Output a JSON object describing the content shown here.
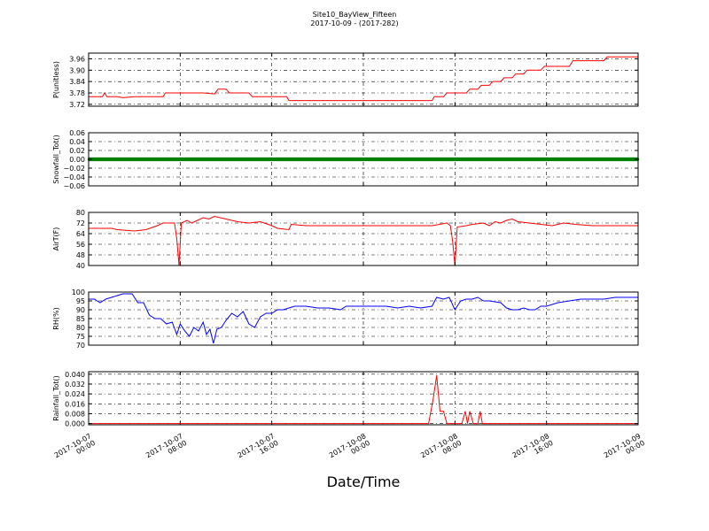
{
  "figure": {
    "title": "Site10_BayView_Fifteen",
    "subtitle": "2017-10-09 - (2017-282)",
    "xlabel": "Date/Time"
  },
  "chart_data": [
    {
      "type": "line",
      "ylabel": "P(unitless)",
      "ylim": [
        3.71,
        3.99
      ],
      "yticks": [
        "3.72",
        "3.78",
        "3.84",
        "3.90",
        "3.96"
      ],
      "yticks_values": [
        3.72,
        3.78,
        3.84,
        3.9,
        3.96
      ],
      "color": "#ff0000",
      "grid": true,
      "xlim_hours": [
        0,
        48
      ],
      "points": [
        [
          0,
          3.76
        ],
        [
          1.2,
          3.76
        ],
        [
          1.4,
          3.78
        ],
        [
          1.6,
          3.76
        ],
        [
          2.5,
          3.76
        ],
        [
          3,
          3.755
        ],
        [
          4,
          3.76
        ],
        [
          6.5,
          3.76
        ],
        [
          6.7,
          3.78
        ],
        [
          8,
          3.78
        ],
        [
          10,
          3.78
        ],
        [
          11,
          3.775
        ],
        [
          11.3,
          3.8
        ],
        [
          12,
          3.8
        ],
        [
          12.3,
          3.78
        ],
        [
          14,
          3.78
        ],
        [
          14.3,
          3.76
        ],
        [
          16.5,
          3.76
        ],
        [
          17.3,
          3.76
        ],
        [
          17.5,
          3.74
        ],
        [
          22,
          3.74
        ],
        [
          26,
          3.74
        ],
        [
          28,
          3.74
        ],
        [
          30,
          3.74
        ],
        [
          30.2,
          3.76
        ],
        [
          31,
          3.76
        ],
        [
          31.3,
          3.78
        ],
        [
          33,
          3.78
        ],
        [
          33.3,
          3.8
        ],
        [
          34,
          3.8
        ],
        [
          34.3,
          3.82
        ],
        [
          35,
          3.82
        ],
        [
          35.3,
          3.84
        ],
        [
          36,
          3.84
        ],
        [
          36.3,
          3.86
        ],
        [
          37,
          3.86
        ],
        [
          37.3,
          3.88
        ],
        [
          38,
          3.88
        ],
        [
          38.3,
          3.9
        ],
        [
          39.5,
          3.9
        ],
        [
          39.8,
          3.92
        ],
        [
          41,
          3.92
        ],
        [
          42,
          3.92
        ],
        [
          42.3,
          3.95
        ],
        [
          44,
          3.95
        ],
        [
          45,
          3.95
        ],
        [
          45.3,
          3.97
        ],
        [
          46,
          3.97
        ],
        [
          47,
          3.97
        ],
        [
          48,
          3.97
        ]
      ]
    },
    {
      "type": "scatter",
      "ylabel": "Snowfall_Tot()",
      "ylim": [
        -0.06,
        0.06
      ],
      "yticks": [
        "0.06",
        "0.04",
        "0.02",
        "0.00",
        "−0.02",
        "−0.04",
        "−0.06"
      ],
      "yticks_values": [
        0.06,
        0.04,
        0.02,
        0.0,
        -0.02,
        -0.04,
        -0.06
      ],
      "color": "#008000",
      "grid": true,
      "xlim_hours": [
        0,
        48
      ],
      "constant_value": 0.0
    },
    {
      "type": "line",
      "ylabel": "AirT(F)",
      "ylim": [
        40,
        80
      ],
      "yticks": [
        "80",
        "72",
        "64",
        "56",
        "48",
        "40"
      ],
      "yticks_values": [
        80,
        72,
        64,
        56,
        48,
        40
      ],
      "color": "#ff0000",
      "grid": true,
      "xlim_hours": [
        0,
        48
      ],
      "points": [
        [
          0,
          68
        ],
        [
          2,
          68
        ],
        [
          2.5,
          67
        ],
        [
          4,
          66
        ],
        [
          5,
          67
        ],
        [
          6,
          70
        ],
        [
          6.5,
          72
        ],
        [
          7.5,
          72
        ],
        [
          7.7,
          60
        ],
        [
          7.9,
          40
        ],
        [
          8.1,
          72
        ],
        [
          8.6,
          74
        ],
        [
          9,
          72
        ],
        [
          10,
          76
        ],
        [
          10.5,
          75
        ],
        [
          11,
          77
        ],
        [
          12,
          75
        ],
        [
          13,
          73
        ],
        [
          14,
          72
        ],
        [
          15,
          73
        ],
        [
          16,
          70
        ],
        [
          16.5,
          68
        ],
        [
          17.5,
          67
        ],
        [
          17.7,
          71
        ],
        [
          19,
          70
        ],
        [
          21,
          70
        ],
        [
          23,
          70
        ],
        [
          24,
          70
        ],
        [
          26,
          70
        ],
        [
          28,
          70
        ],
        [
          30,
          70
        ],
        [
          31.3,
          72
        ],
        [
          31.6,
          70
        ],
        [
          31.8,
          58
        ],
        [
          32,
          40
        ],
        [
          32.2,
          69
        ],
        [
          33,
          70
        ],
        [
          33.5,
          71
        ],
        [
          34.5,
          72
        ],
        [
          35,
          70
        ],
        [
          35.5,
          73
        ],
        [
          36,
          72
        ],
        [
          36.5,
          74
        ],
        [
          37,
          75
        ],
        [
          37.5,
          73
        ],
        [
          38.5,
          72
        ],
        [
          39.5,
          71
        ],
        [
          40.5,
          70
        ],
        [
          41.5,
          72
        ],
        [
          42.5,
          71
        ],
        [
          44,
          70
        ],
        [
          46,
          70
        ],
        [
          48,
          70
        ]
      ]
    },
    {
      "type": "line",
      "ylabel": "RH(%)",
      "ylim": [
        70,
        100
      ],
      "yticks": [
        "100",
        "95",
        "90",
        "85",
        "80",
        "75",
        "70"
      ],
      "yticks_values": [
        100,
        95,
        90,
        85,
        80,
        75,
        70
      ],
      "color": "#0000ff",
      "grid": true,
      "xlim_hours": [
        0,
        48
      ],
      "points": [
        [
          0,
          96
        ],
        [
          0.5,
          96
        ],
        [
          1,
          94
        ],
        [
          1.5,
          96
        ],
        [
          2,
          97
        ],
        [
          2.5,
          98
        ],
        [
          3,
          99
        ],
        [
          3.8,
          99
        ],
        [
          4.3,
          94
        ],
        [
          4.8,
          94
        ],
        [
          5.3,
          87
        ],
        [
          5.8,
          85
        ],
        [
          6.3,
          85
        ],
        [
          6.8,
          82
        ],
        [
          7.3,
          83
        ],
        [
          7.7,
          76
        ],
        [
          8,
          82
        ],
        [
          8.4,
          78
        ],
        [
          8.8,
          75
        ],
        [
          9.2,
          80
        ],
        [
          9.6,
          78
        ],
        [
          10,
          83
        ],
        [
          10.3,
          76
        ],
        [
          10.6,
          79
        ],
        [
          10.9,
          71
        ],
        [
          11.2,
          79
        ],
        [
          11.6,
          80
        ],
        [
          12,
          84
        ],
        [
          12.5,
          88
        ],
        [
          13,
          86
        ],
        [
          13.5,
          89
        ],
        [
          14,
          82
        ],
        [
          14.5,
          80
        ],
        [
          15,
          86
        ],
        [
          15.5,
          88
        ],
        [
          16,
          88
        ],
        [
          16.5,
          90
        ],
        [
          17,
          90
        ],
        [
          18,
          92
        ],
        [
          19,
          92
        ],
        [
          20,
          91
        ],
        [
          21,
          91
        ],
        [
          22,
          90
        ],
        [
          22.5,
          92
        ],
        [
          23.5,
          92
        ],
        [
          25,
          92
        ],
        [
          26,
          92
        ],
        [
          27,
          91
        ],
        [
          28,
          92
        ],
        [
          29,
          91
        ],
        [
          30,
          92
        ],
        [
          30.4,
          97
        ],
        [
          31,
          96
        ],
        [
          31.5,
          97
        ],
        [
          32,
          90
        ],
        [
          32.5,
          95
        ],
        [
          33,
          96
        ],
        [
          33.5,
          96
        ],
        [
          34,
          97
        ],
        [
          34.5,
          95
        ],
        [
          35,
          95
        ],
        [
          36,
          94
        ],
        [
          36.5,
          91
        ],
        [
          37,
          90
        ],
        [
          37.5,
          90
        ],
        [
          38,
          91
        ],
        [
          38.5,
          90
        ],
        [
          39,
          90
        ],
        [
          39.5,
          92
        ],
        [
          40,
          92
        ],
        [
          41,
          94
        ],
        [
          42,
          95
        ],
        [
          43,
          96
        ],
        [
          44,
          96
        ],
        [
          45,
          96
        ],
        [
          46,
          97
        ],
        [
          47,
          97
        ],
        [
          48,
          97
        ]
      ]
    },
    {
      "type": "line",
      "ylabel": "Rainfall_Tot()",
      "ylim": [
        -0.001,
        0.042
      ],
      "yticks": [
        "0.040",
        "0.032",
        "0.024",
        "0.016",
        "0.008",
        "0.000"
      ],
      "yticks_values": [
        0.04,
        0.032,
        0.024,
        0.016,
        0.008,
        0.0
      ],
      "color": "#ff0000",
      "grid": true,
      "xlim_hours": [
        0,
        48
      ],
      "points": [
        [
          0,
          0
        ],
        [
          29.7,
          0
        ],
        [
          30.1,
          0.02
        ],
        [
          30.4,
          0.039
        ],
        [
          30.7,
          0.01
        ],
        [
          31,
          0.01
        ],
        [
          31.3,
          0
        ],
        [
          32.6,
          0
        ],
        [
          32.9,
          0.01
        ],
        [
          33.1,
          0
        ],
        [
          33.3,
          0.01
        ],
        [
          33.6,
          0
        ],
        [
          34,
          0
        ],
        [
          34.2,
          0.01
        ],
        [
          34.4,
          0
        ],
        [
          48,
          0
        ]
      ]
    }
  ],
  "xaxis": {
    "ticks_hours": [
      0,
      8,
      16,
      24,
      32,
      40,
      48
    ],
    "tick_labels": [
      [
        "2017-10-07",
        "00:00"
      ],
      [
        "2017-10-07",
        "08:00"
      ],
      [
        "2017-10-07",
        "16:00"
      ],
      [
        "2017-10-08",
        "00:00"
      ],
      [
        "2017-10-08",
        "08:00"
      ],
      [
        "2017-10-08",
        "16:00"
      ],
      [
        "2017-10-09",
        "00:00"
      ]
    ]
  }
}
